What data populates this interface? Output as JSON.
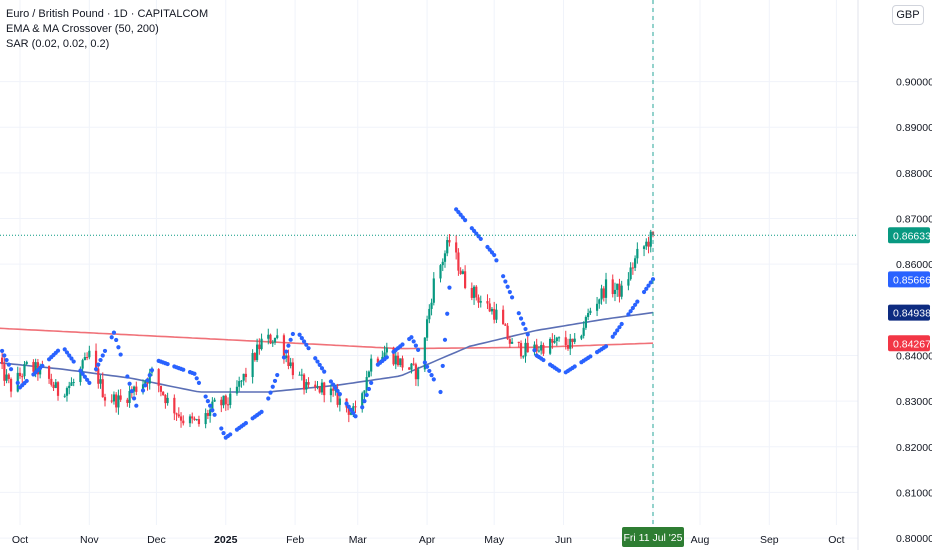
{
  "header": {
    "symbol_title": "Euro / British Pound · 1D · CAPITALCOM",
    "indicator_1": "EMA & MA Crossover (50, 200)",
    "indicator_2": "SAR (0.02, 0.02, 0.2)",
    "currency_button": "GBP"
  },
  "colors": {
    "up": "#089981",
    "down": "#f23645",
    "ma50": "#5b6fb5",
    "ma200": "#f07178",
    "sar": "#2962ff",
    "crosshair": "#26a69a",
    "date_badge": "#2e7d32"
  },
  "chart_data": {
    "type": "candlestick",
    "x_axis": {
      "labels": [
        "Oct",
        "Nov",
        "Dec",
        "2025",
        "Feb",
        "Mar",
        "Apr",
        "May",
        "Jun",
        "Fri 11 Jul '25",
        "Aug",
        "Sep",
        "Oct"
      ],
      "current_date_label": "Fri 11 Jul '25"
    },
    "y_axis": {
      "ticks": [
        "0.90000",
        "0.89000",
        "0.88000",
        "0.87000",
        "0.86000",
        "0.84000",
        "0.83000",
        "0.82000",
        "0.81000",
        "0.80000"
      ],
      "ylim": [
        0.7975,
        0.9125
      ]
    },
    "price_badges": [
      {
        "label": "0.86633",
        "value": 0.86633,
        "series": "last_price"
      },
      {
        "label": "0.85666",
        "value": 0.85666,
        "series": "sar"
      },
      {
        "label": "0.84938",
        "value": 0.84938,
        "series": "ma50"
      },
      {
        "label": "0.84267",
        "value": 0.84267,
        "series": "ma200"
      }
    ],
    "close_anchors": [
      [
        "2024-09-20",
        0.839
      ],
      [
        "2024-09-27",
        0.833
      ],
      [
        "2024-10-04",
        0.8375
      ],
      [
        "2024-10-11",
        0.8365
      ],
      [
        "2024-10-18",
        0.832
      ],
      [
        "2024-10-25",
        0.834
      ],
      [
        "2024-11-01",
        0.84
      ],
      [
        "2024-11-08",
        0.831
      ],
      [
        "2024-11-15",
        0.83
      ],
      [
        "2024-11-22",
        0.833
      ],
      [
        "2024-11-29",
        0.836
      ],
      [
        "2024-12-06",
        0.83
      ],
      [
        "2024-12-13",
        0.826
      ],
      [
        "2024-12-20",
        0.825
      ],
      [
        "2024-12-27",
        0.829
      ],
      [
        "2025-01-03",
        0.83
      ],
      [
        "2025-01-10",
        0.836
      ],
      [
        "2025-01-17",
        0.843
      ],
      [
        "2025-01-24",
        0.844
      ],
      [
        "2025-01-31",
        0.837
      ],
      [
        "2025-02-07",
        0.832
      ],
      [
        "2025-02-14",
        0.833
      ],
      [
        "2025-02-21",
        0.83
      ],
      [
        "2025-02-28",
        0.827
      ],
      [
        "2025-03-07",
        0.839
      ],
      [
        "2025-03-14",
        0.841
      ],
      [
        "2025-03-21",
        0.838
      ],
      [
        "2025-03-28",
        0.836
      ],
      [
        "2025-04-04",
        0.856
      ],
      [
        "2025-04-11",
        0.865
      ],
      [
        "2025-04-18",
        0.856
      ],
      [
        "2025-04-25",
        0.852
      ],
      [
        "2025-05-02",
        0.849
      ],
      [
        "2025-05-09",
        0.842
      ],
      [
        "2025-05-16",
        0.841
      ],
      [
        "2025-05-23",
        0.842
      ],
      [
        "2025-05-30",
        0.843
      ],
      [
        "2025-06-06",
        0.842
      ],
      [
        "2025-06-13",
        0.85
      ],
      [
        "2025-06-20",
        0.855
      ],
      [
        "2025-06-27",
        0.854
      ],
      [
        "2025-07-04",
        0.862
      ],
      [
        "2025-07-11",
        0.8663
      ]
    ],
    "ma50_anchors": [
      [
        "2024-09-20",
        0.8385
      ],
      [
        "2024-10-20",
        0.837
      ],
      [
        "2024-11-20",
        0.835
      ],
      [
        "2024-12-20",
        0.832
      ],
      [
        "2025-01-20",
        0.832
      ],
      [
        "2025-02-20",
        0.8335
      ],
      [
        "2025-03-20",
        0.8355
      ],
      [
        "2025-04-20",
        0.842
      ],
      [
        "2025-05-20",
        0.8455
      ],
      [
        "2025-06-20",
        0.848
      ],
      [
        "2025-07-11",
        0.8494
      ]
    ],
    "ma200_anchors": [
      [
        "2024-09-20",
        0.846
      ],
      [
        "2024-11-20",
        0.8445
      ],
      [
        "2025-01-20",
        0.843
      ],
      [
        "2025-03-20",
        0.8415
      ],
      [
        "2025-05-20",
        0.8418
      ],
      [
        "2025-07-11",
        0.8427
      ]
    ],
    "sar_anchors": [
      [
        "2024-09-20",
        0.844
      ],
      [
        "2024-10-01",
        0.833
      ],
      [
        "2024-10-20",
        0.842
      ],
      [
        "2024-11-01",
        0.834
      ],
      [
        "2024-11-12",
        0.845
      ],
      [
        "2024-11-22",
        0.829
      ],
      [
        "2024-12-01",
        0.839
      ],
      [
        "2024-12-18",
        0.836
      ],
      [
        "2025-01-01",
        0.822
      ],
      [
        "2025-01-18",
        0.828
      ],
      [
        "2025-02-01",
        0.846
      ],
      [
        "2025-02-16",
        0.835
      ],
      [
        "2025-03-01",
        0.826
      ],
      [
        "2025-03-10",
        0.838
      ],
      [
        "2025-03-25",
        0.844
      ],
      [
        "2025-04-07",
        0.832
      ],
      [
        "2025-04-14",
        0.872
      ],
      [
        "2025-05-01",
        0.862
      ],
      [
        "2025-05-20",
        0.84
      ],
      [
        "2025-06-01",
        0.836
      ],
      [
        "2025-06-20",
        0.842
      ],
      [
        "2025-07-11",
        0.8567
      ]
    ]
  }
}
